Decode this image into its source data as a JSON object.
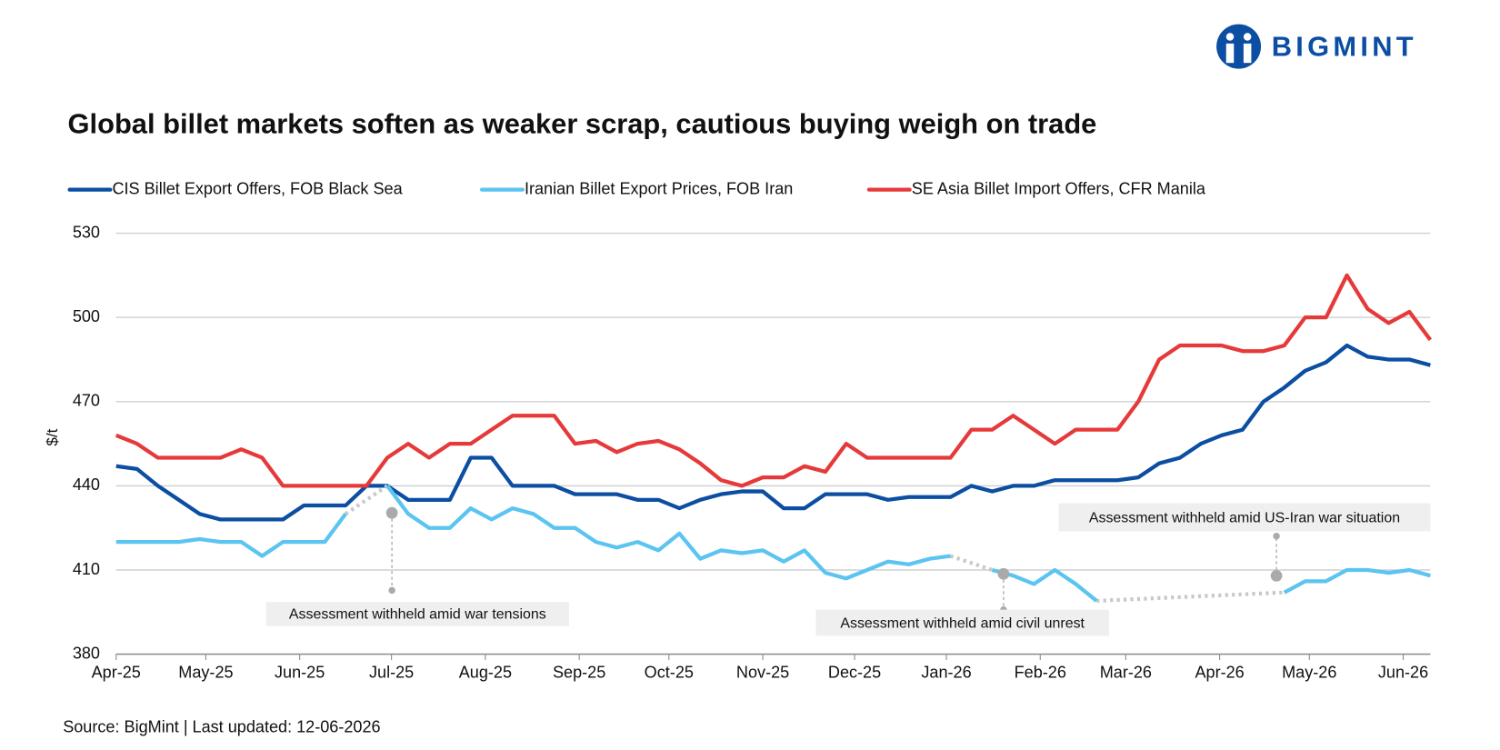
{
  "chart_data": {
    "type": "line",
    "logo": "BIGMINT",
    "title": "Global billet markets soften as weaker scrap, cautious buying weigh on trade",
    "y_label": "$/t",
    "source": "Source: BigMint | Last updated: 12-06-2026",
    "x": [
      0,
      1,
      2,
      3,
      4,
      5,
      6,
      7,
      8,
      9,
      10,
      11,
      12,
      13,
      14,
      15,
      16,
      17,
      18,
      19,
      20,
      21,
      22,
      23,
      24,
      25,
      26,
      27,
      28,
      29,
      30,
      31,
      32,
      33,
      34,
      35,
      36,
      37,
      38,
      39,
      40,
      41,
      42,
      43,
      44,
      45,
      46,
      47,
      48,
      49,
      50,
      51,
      52,
      53,
      54,
      55,
      56,
      57,
      58,
      59,
      60,
      61,
      62,
      63
    ],
    "xlim": [
      0,
      63
    ],
    "xticks": [
      {
        "value": 0,
        "label": "Apr-25"
      },
      {
        "value": 4.3,
        "label": "May-25"
      },
      {
        "value": 8.8,
        "label": "Jun-25"
      },
      {
        "value": 13.2,
        "label": "Jul-25"
      },
      {
        "value": 17.7,
        "label": "Aug-25"
      },
      {
        "value": 22.2,
        "label": "Sep-25"
      },
      {
        "value": 26.5,
        "label": "Oct-25"
      },
      {
        "value": 31.0,
        "label": "Nov-25"
      },
      {
        "value": 35.4,
        "label": "Dec-25"
      },
      {
        "value": 39.8,
        "label": "Jan-26"
      },
      {
        "value": 44.3,
        "label": "Feb-26"
      },
      {
        "value": 48.4,
        "label": "Mar-26"
      },
      {
        "value": 52.9,
        "label": "Apr-26"
      },
      {
        "value": 57.2,
        "label": "May-26"
      },
      {
        "value": 61.7,
        "label": "Jun-26"
      }
    ],
    "ylim": [
      380,
      530
    ],
    "yticks": [
      380,
      410,
      440,
      470,
      500,
      530
    ],
    "grid": true,
    "series": [
      {
        "name": "CIS Billet Export Offers, FOB Black Sea",
        "color": "#0b4ea2",
        "values": [
          447,
          446,
          440,
          435,
          430,
          428,
          428,
          428,
          428,
          433,
          433,
          433,
          440,
          440,
          435,
          435,
          435,
          450,
          450,
          440,
          440,
          440,
          437,
          437,
          437,
          435,
          435,
          432,
          435,
          437,
          438,
          438,
          432,
          432,
          437,
          437,
          437,
          435,
          436,
          436,
          436,
          440,
          438,
          440,
          440,
          442,
          442,
          442,
          442,
          443,
          448,
          450,
          455,
          458,
          460,
          470,
          475,
          481,
          484,
          490,
          486,
          485,
          485,
          483
        ]
      },
      {
        "name": "Iranian Billet Export Prices, FOB Iran",
        "color": "#5bc4f1",
        "values": [
          420,
          420,
          420,
          420,
          421,
          420,
          420,
          415,
          420,
          420,
          420,
          430,
          null,
          440,
          430,
          425,
          425,
          432,
          428,
          432,
          430,
          425,
          425,
          420,
          418,
          420,
          417,
          423,
          414,
          417,
          416,
          417,
          413,
          417,
          409,
          407,
          410,
          413,
          412,
          414,
          415,
          null,
          410,
          408,
          405,
          410,
          405,
          399,
          null,
          null,
          null,
          null,
          null,
          null,
          null,
          null,
          402,
          406,
          406,
          410,
          410,
          409,
          410,
          408
        ]
      },
      {
        "name": "SE Asia Billet Import Offers, CFR Manila",
        "color": "#e63a3a",
        "values": [
          458,
          455,
          450,
          450,
          450,
          450,
          453,
          450,
          440,
          440,
          440,
          440,
          440,
          450,
          455,
          450,
          455,
          455,
          460,
          465,
          465,
          465,
          455,
          456,
          452,
          455,
          456,
          453,
          448,
          442,
          440,
          443,
          443,
          447,
          445,
          455,
          450,
          450,
          450,
          450,
          450,
          460,
          460,
          465,
          460,
          455,
          460,
          460,
          460,
          470,
          485,
          490,
          490,
          490,
          488,
          488,
          490,
          500,
          500,
          515,
          503,
          498,
          502,
          492
        ]
      }
    ],
    "annotations": [
      "Assessment withheld amid  war tensions",
      "Assessment withheld amid civil unrest",
      "Assessment withheld amid US-Iran war situation"
    ]
  }
}
